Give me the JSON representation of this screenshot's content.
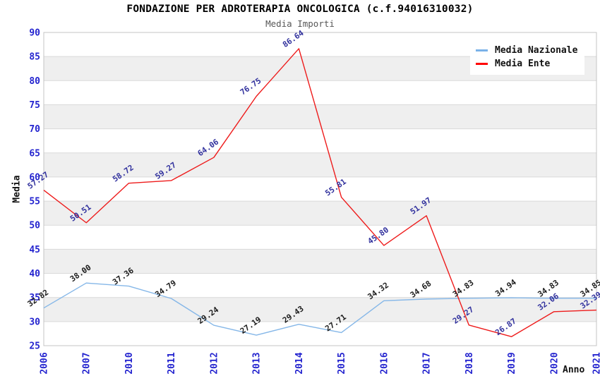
{
  "header": {
    "title": "FONDAZIONE PER ADROTERAPIA ONCOLOGICA (c.f.94016310032)",
    "subtitle": "Media Importi"
  },
  "legend": {
    "position": "top-right",
    "items": [
      {
        "label": "Media Nazionale",
        "color": "#7ab2e8"
      },
      {
        "label": "Media Ente",
        "color": "#ff0000"
      }
    ]
  },
  "axes": {
    "y_title": "Media",
    "x_title": "Anno",
    "tick_color": "#2424cf",
    "y_ticks": [
      25,
      30,
      35,
      40,
      45,
      50,
      55,
      60,
      65,
      70,
      75,
      80,
      85,
      90
    ]
  },
  "chart_data": {
    "type": "line",
    "title": "FONDAZIONE PER ADROTERAPIA ONCOLOGICA (c.f.94016310032)",
    "subtitle": "Media Importi",
    "xlabel": "Anno",
    "ylabel": "Media",
    "ylim": [
      25,
      90
    ],
    "ytick_step": 5,
    "grid": "horizontal-bands-alternating",
    "band_color": "#efefef",
    "gridline_color": "#d9d9d9",
    "border_color": "#c4c4c4",
    "legend_position": "top-right",
    "label_rotation_deg": -35,
    "categories": [
      "2006",
      "2007",
      "2010",
      "2011",
      "2012",
      "2013",
      "2014",
      "2015",
      "2016",
      "2017",
      "2018",
      "2019",
      "2020",
      "2021"
    ],
    "series": [
      {
        "name": "Media Nazionale",
        "line_color": "#85b7e8",
        "label_color": "#1c1c1c",
        "values": [
          32.82,
          38.0,
          37.36,
          34.79,
          29.24,
          27.19,
          29.43,
          27.71,
          34.32,
          34.68,
          34.83,
          34.94,
          34.83,
          34.85
        ]
      },
      {
        "name": "Media Ente",
        "line_color": "#ee1b1b",
        "label_color": "#32329e",
        "values": [
          57.27,
          50.51,
          58.72,
          59.27,
          64.06,
          76.75,
          86.64,
          55.81,
          45.8,
          51.97,
          29.27,
          26.87,
          32.06,
          32.39
        ]
      }
    ]
  }
}
